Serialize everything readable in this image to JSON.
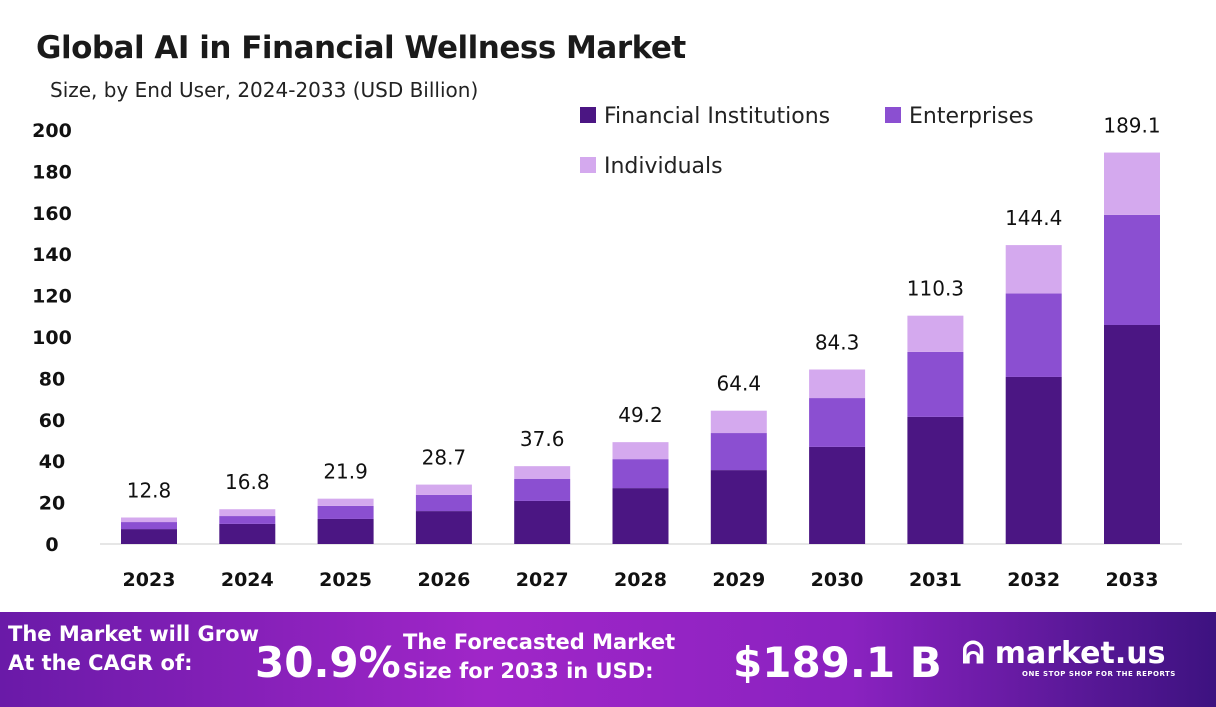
{
  "chart_data": {
    "type": "bar",
    "stacked": true,
    "title": "Global AI in Financial Wellness Market",
    "subtitle": "Size, by End User, 2024-2033 (USD Billion)",
    "categories": [
      "2023",
      "2024",
      "2025",
      "2026",
      "2027",
      "2028",
      "2029",
      "2030",
      "2031",
      "2032",
      "2033"
    ],
    "series": [
      {
        "name": "Financial Institutions",
        "color": "#4b1683",
        "values": [
          7.2,
          9.7,
          12.1,
          15.9,
          20.8,
          27.0,
          35.7,
          46.9,
          61.4,
          80.7,
          105.8
        ]
      },
      {
        "name": "Enterprises",
        "color": "#8b4fd1",
        "values": [
          3.4,
          3.8,
          6.3,
          7.8,
          10.6,
          14.0,
          17.9,
          23.6,
          31.4,
          40.3,
          53.2
        ]
      },
      {
        "name": "Individuals",
        "color": "#d4a9ee",
        "values": [
          2.2,
          3.3,
          3.5,
          5.0,
          6.2,
          8.2,
          10.8,
          13.8,
          17.5,
          23.4,
          30.1
        ]
      }
    ],
    "totals": [
      "12.8",
      "16.8",
      "21.9",
      "28.7",
      "37.6",
      "49.2",
      "64.4",
      "84.3",
      "110.3",
      "144.4",
      "189.1"
    ],
    "ylim": [
      0,
      200
    ],
    "yticks": [
      0,
      20,
      40,
      60,
      80,
      100,
      120,
      140,
      160,
      180,
      200
    ],
    "grid": false,
    "legend": "top-right"
  },
  "footer": {
    "cagr_label_1": "The Market will Grow",
    "cagr_label_2": "At the CAGR of:",
    "cagr_value": "30.9%",
    "forecast_label_1": "The Forecasted Market",
    "forecast_label_2": "Size for 2033 in USD:",
    "forecast_value": "$189.1 B",
    "logo": "market.us",
    "logo_tagline": "ONE STOP SHOP FOR THE REPORTS"
  }
}
